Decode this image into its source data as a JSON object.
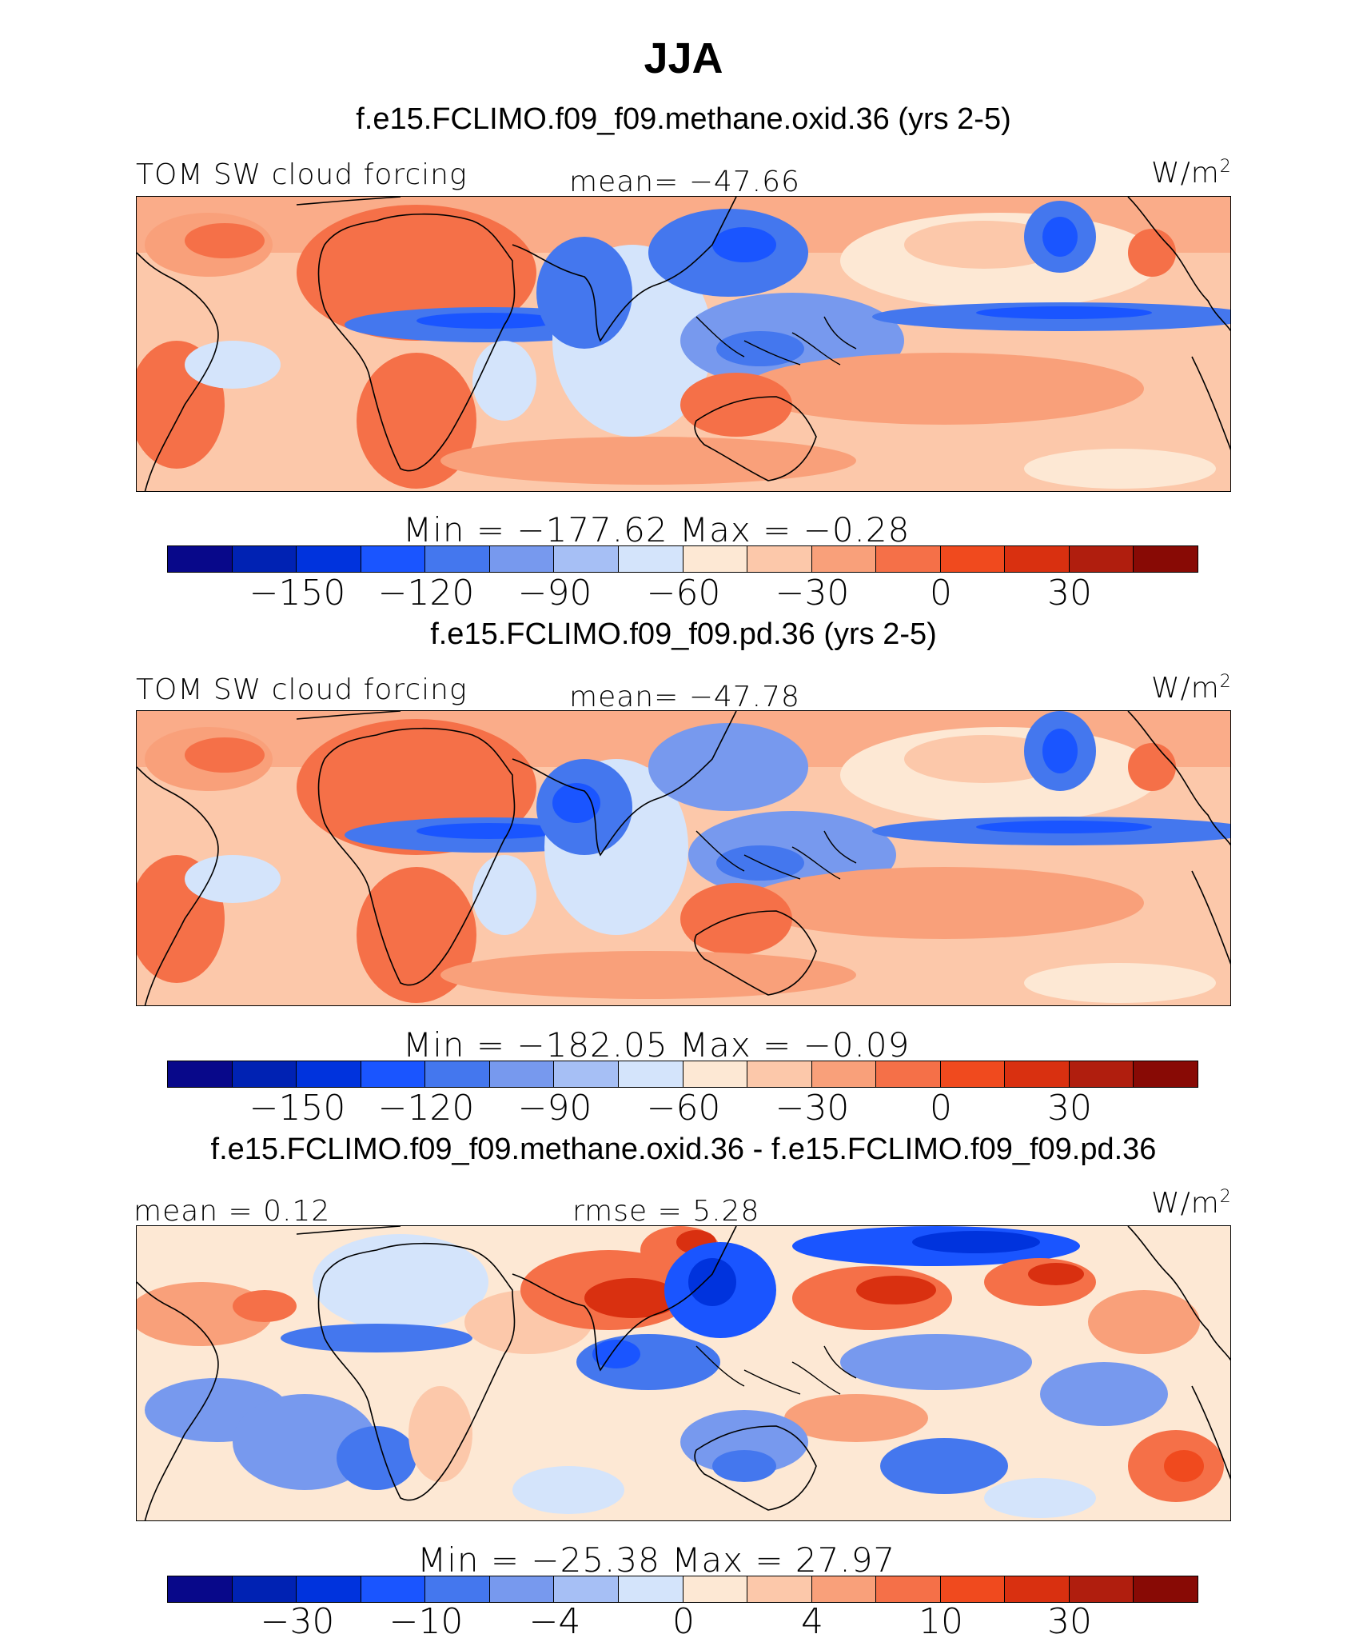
{
  "title": "JJA",
  "palette": [
    "#08088a",
    "#0022b3",
    "#0033dd",
    "#1a55ff",
    "#4477ee",
    "#7799ee",
    "#a6bff5",
    "#d4e4fb",
    "#fde8d4",
    "#fcc8aa",
    "#f9a07a",
    "#f57048",
    "#f04a1e",
    "#d93010",
    "#b01e0e",
    "#880a05"
  ],
  "panels": [
    {
      "case_title": "f.e15.FCLIMO.f09_f09.methane.oxid.36 (yrs 2-5)",
      "variable": "TOM SW cloud forcing",
      "stat_label": "mean= −47.66",
      "units_base": "W/m",
      "units_exp": "2",
      "minmax": "Min = −177.62 Max = −0.28",
      "ticks": [
        "−150",
        "−120",
        "−90",
        "−60",
        "−30",
        "0",
        "30"
      ]
    },
    {
      "case_title": "f.e15.FCLIMO.f09_f09.pd.36 (yrs 2-5)",
      "variable": "TOM SW cloud forcing",
      "stat_label": "mean= −47.78",
      "units_base": "W/m",
      "units_exp": "2",
      "minmax": "Min = −182.05 Max = −0.09",
      "ticks": [
        "−150",
        "−120",
        "−90",
        "−60",
        "−30",
        "0",
        "30"
      ]
    },
    {
      "case_title": "f.e15.FCLIMO.f09_f09.methane.oxid.36 - f.e15.FCLIMO.f09_f09.pd.36",
      "variable": "mean =   0.12",
      "stat_label": "rmse =   5.28",
      "units_base": "W/m",
      "units_exp": "2",
      "minmax": "Min = −25.38 Max = 27.97",
      "ticks": [
        "−30",
        "−10",
        "−4",
        "0",
        "4",
        "10",
        "30"
      ]
    }
  ]
}
